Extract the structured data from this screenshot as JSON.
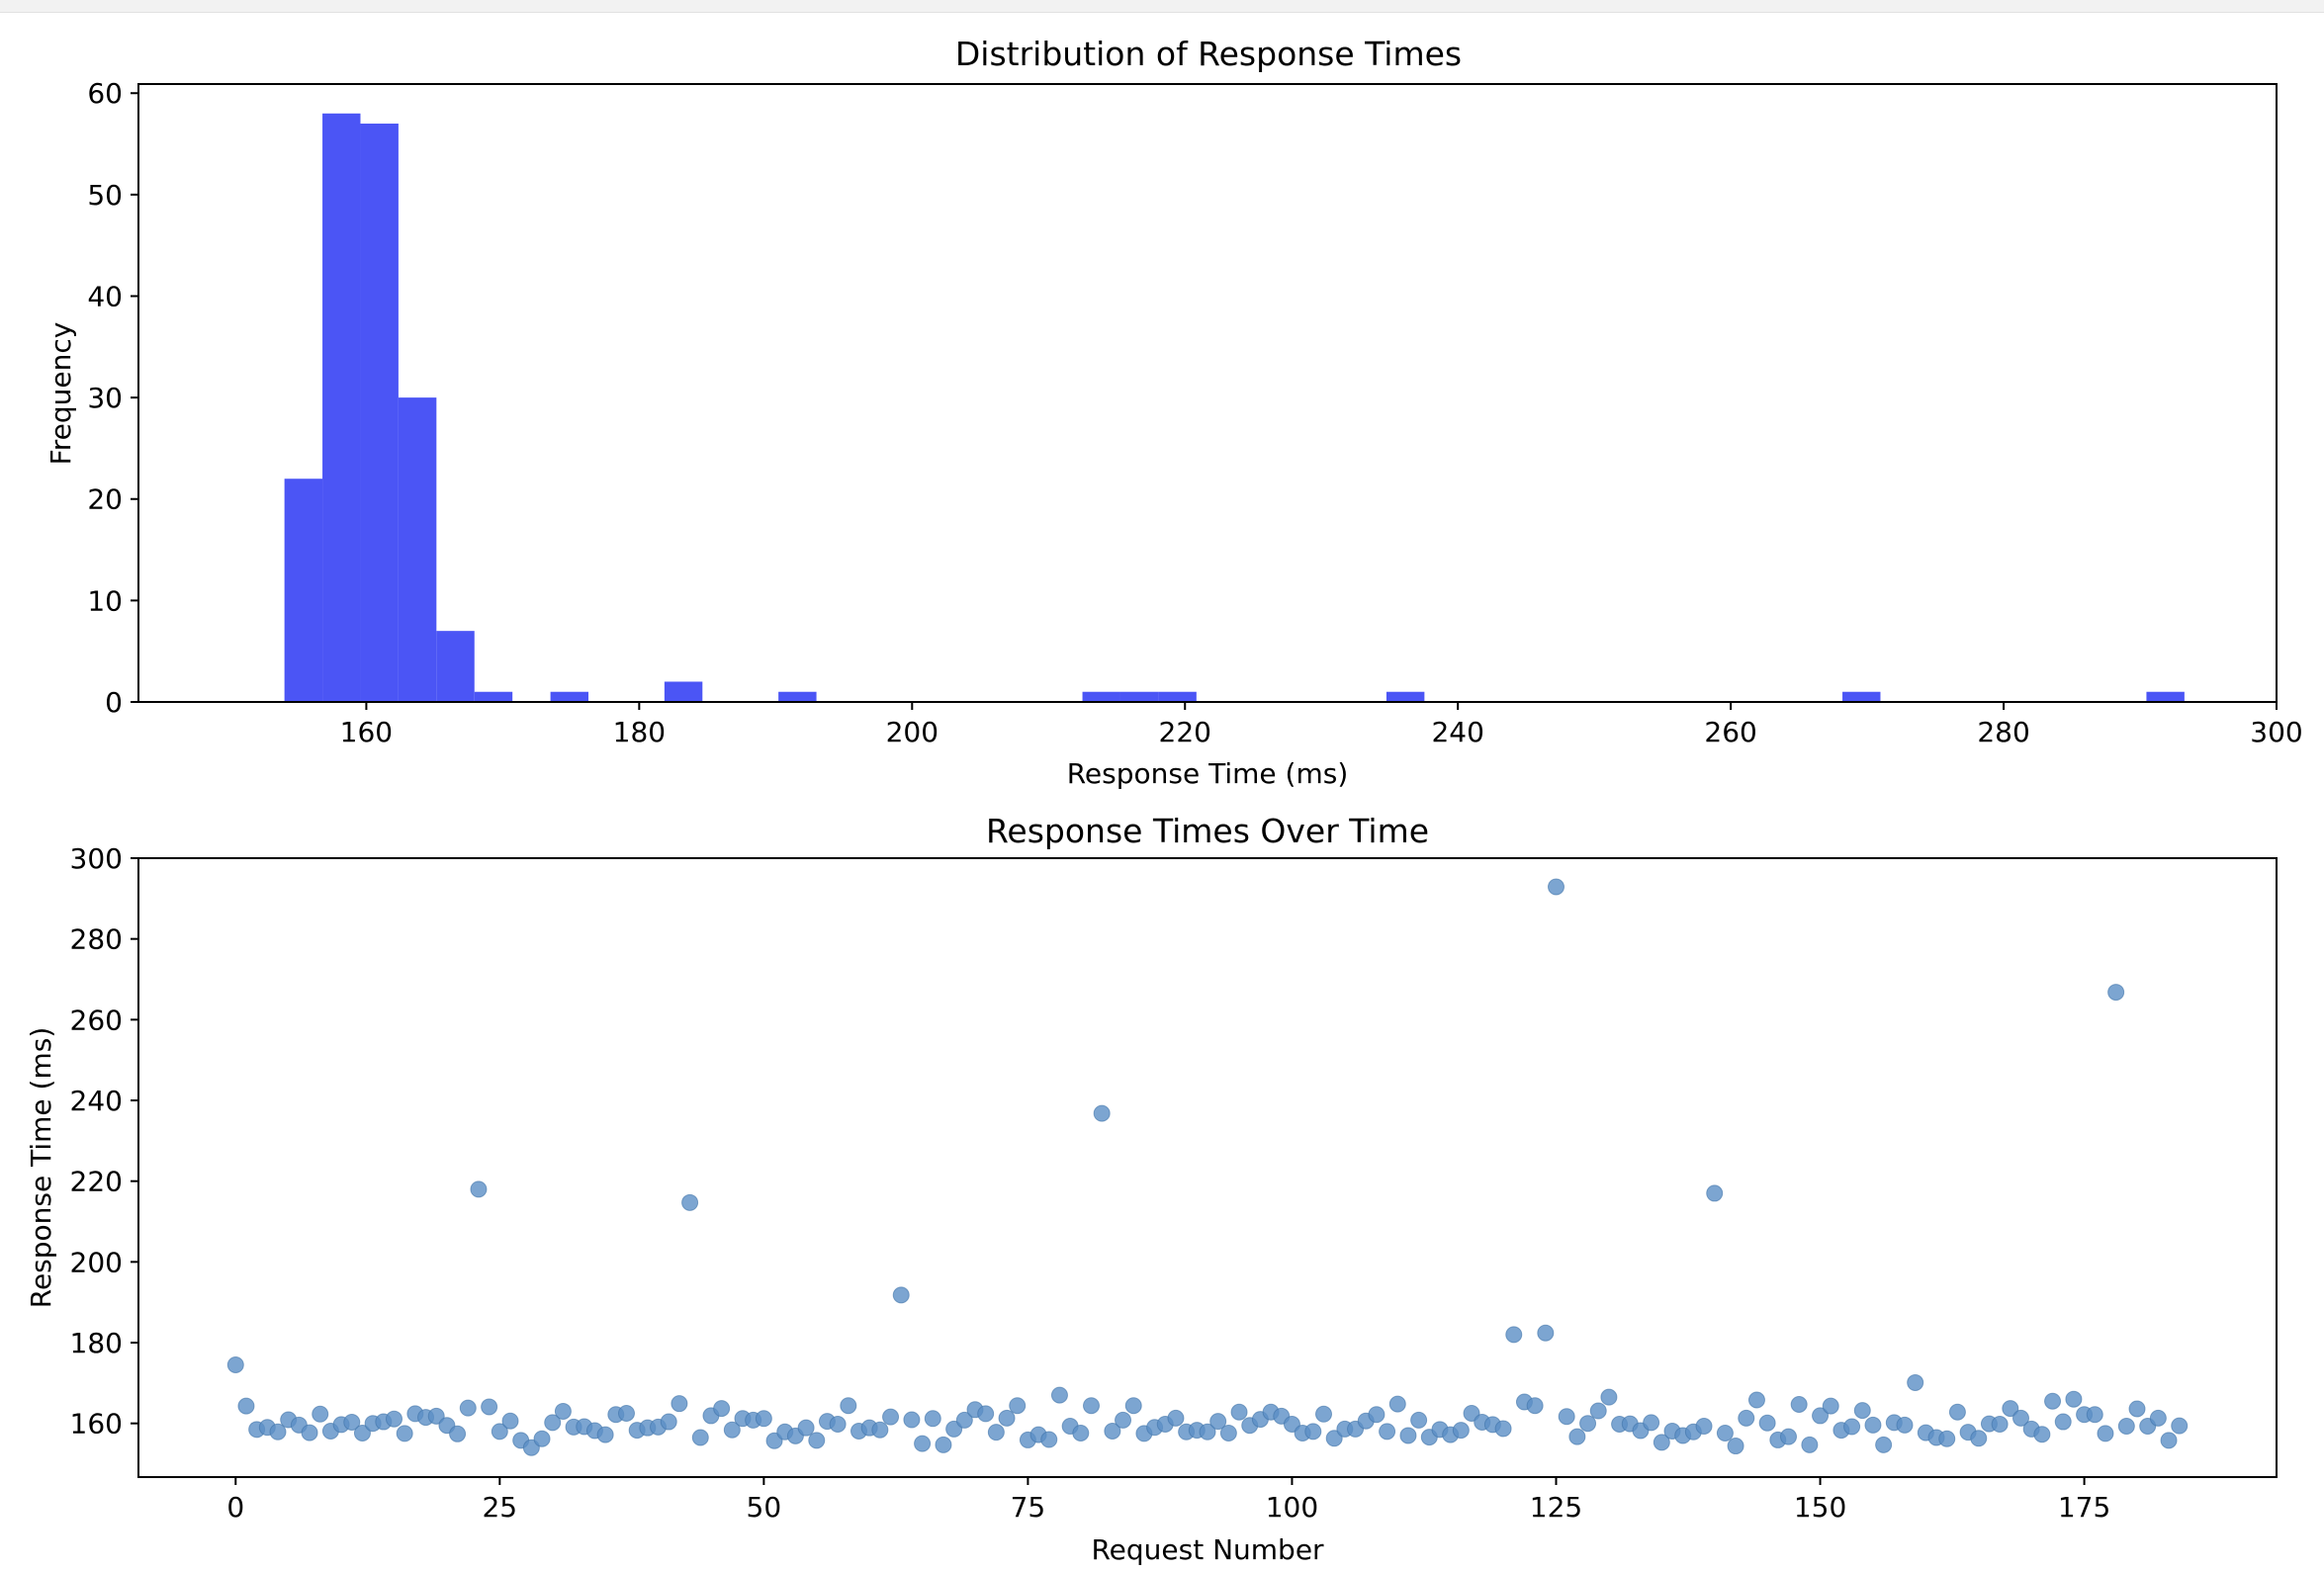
{
  "colors": {
    "hist_bar": "#4b55f5",
    "scatter_point": "#5b8fc6",
    "axis": "#000000",
    "background": "#ffffff"
  },
  "chart_data": [
    {
      "type": "bar",
      "title": "Distribution of Response Times",
      "xlabel": "Response Time (ms)",
      "ylabel": "Frequency",
      "xlim": [
        143.3,
        300
      ],
      "ylim": [
        0,
        60.9
      ],
      "xticks": [
        160,
        180,
        200,
        220,
        240,
        260,
        280,
        300
      ],
      "yticks": [
        0,
        10,
        20,
        30,
        40,
        50,
        60
      ],
      "grid": false,
      "bin_start": 154.0,
      "bin_width": 2.785,
      "counts": [
        22,
        58,
        57,
        30,
        7,
        1,
        0,
        1,
        0,
        0,
        2,
        0,
        0,
        1,
        0,
        0,
        0,
        0,
        0,
        0,
        0,
        1,
        1,
        1,
        0,
        0,
        0,
        0,
        0,
        1,
        0,
        0,
        0,
        0,
        0,
        0,
        0,
        0,
        0,
        0,
        0,
        1,
        0,
        0,
        0,
        0,
        0,
        0,
        0,
        1
      ]
    },
    {
      "type": "scatter",
      "title": "Response Times Over Time",
      "xlabel": "Request Number",
      "ylabel": "Response Time (ms)",
      "xlim": [
        -9.2,
        193.2
      ],
      "ylim": [
        146.7,
        300
      ],
      "xticks": [
        0,
        25,
        50,
        75,
        100,
        125,
        150,
        175
      ],
      "yticks": [
        160,
        180,
        200,
        220,
        240,
        260,
        280,
        300
      ],
      "grid": false,
      "x_start": 0,
      "values": [
        174.5,
        164.3,
        158.5,
        159.0,
        157.9,
        160.9,
        159.6,
        157.7,
        162.3,
        158.1,
        159.7,
        160.3,
        157.6,
        160.0,
        160.4,
        161.1,
        157.5,
        162.4,
        161.5,
        161.8,
        159.5,
        157.4,
        163.8,
        218.0,
        164.1,
        158.0,
        160.6,
        155.8,
        154.0,
        156.2,
        160.2,
        163.0,
        159.1,
        159.2,
        158.2,
        157.2,
        162.2,
        162.5,
        158.3,
        158.9,
        159.1,
        160.4,
        164.9,
        214.7,
        156.5,
        161.9,
        163.7,
        158.4,
        161.2,
        160.8,
        161.2,
        155.7,
        157.9,
        156.9,
        158.9,
        155.8,
        160.5,
        159.8,
        164.4,
        158.1,
        158.9,
        158.4,
        161.6,
        191.8,
        160.9,
        155.0,
        161.2,
        154.7,
        158.6,
        160.8,
        163.4,
        162.4,
        157.8,
        161.3,
        164.4,
        155.9,
        157.2,
        156.0,
        167.0,
        159.3,
        157.6,
        164.4,
        236.8,
        158.1,
        160.8,
        164.4,
        157.5,
        159.0,
        159.8,
        161.3,
        157.9,
        158.3,
        157.9,
        160.5,
        157.6,
        162.8,
        159.5,
        161.0,
        162.8,
        161.8,
        159.8,
        157.6,
        158.0,
        162.3,
        156.3,
        158.6,
        158.6,
        160.6,
        162.2,
        158.0,
        164.8,
        157.0,
        160.8,
        156.6,
        158.5,
        157.2,
        158.3,
        162.5,
        160.3,
        159.7,
        158.7,
        182.0,
        165.3,
        164.4,
        182.4,
        292.9,
        161.7,
        156.7,
        160.0,
        163.1,
        166.5,
        159.8,
        159.9,
        158.2,
        160.2,
        155.3,
        158.1,
        157.0,
        157.9,
        159.3,
        217.0,
        157.6,
        154.4,
        161.3,
        165.8,
        160.1,
        155.9,
        156.7,
        164.7,
        154.7,
        161.9,
        164.3,
        158.3,
        159.2,
        163.2,
        159.6,
        154.7,
        160.2,
        159.6,
        170.1,
        157.7,
        156.5,
        156.2,
        162.8,
        157.8,
        156.3,
        159.9,
        159.8,
        163.7,
        161.3,
        158.6,
        157.3,
        165.5,
        160.4,
        166.0,
        162.2,
        162.2,
        157.5,
        266.8,
        159.3,
        163.6,
        159.3,
        161.3,
        155.8,
        159.4
      ]
    }
  ]
}
